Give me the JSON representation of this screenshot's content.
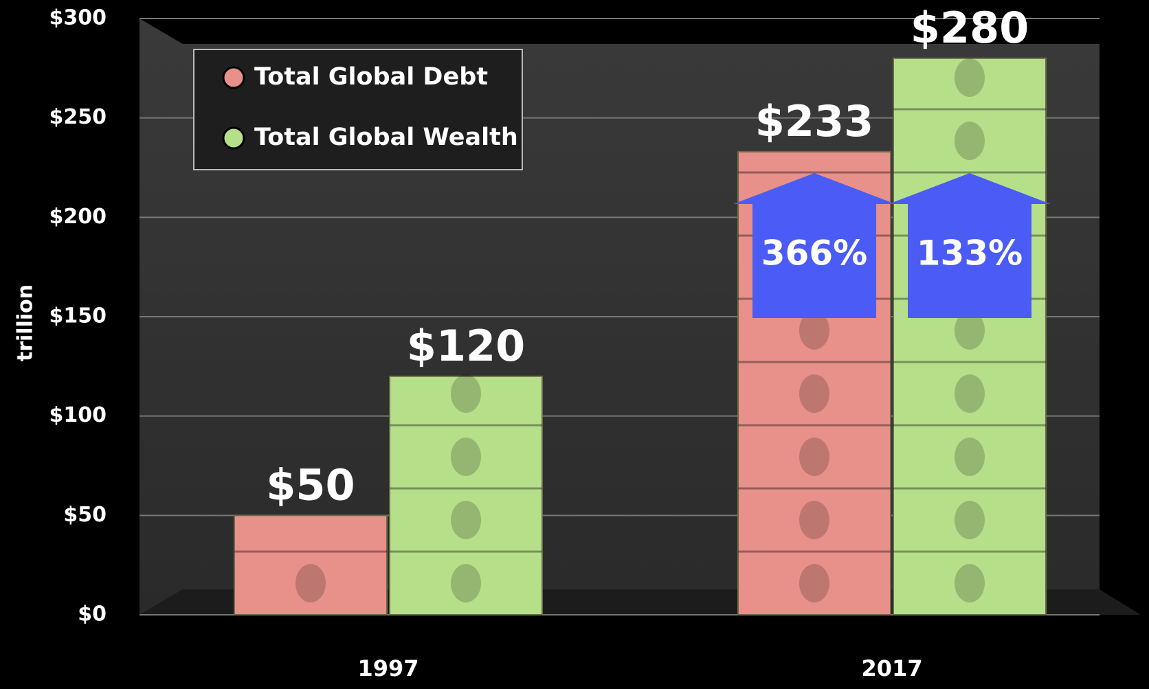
{
  "chart_data": {
    "type": "bar",
    "categories": [
      "1997",
      "2017"
    ],
    "series": [
      {
        "name": "Total Global Debt",
        "color": "#e8908a",
        "values": [
          50,
          233
        ],
        "value_labels": [
          "$50",
          "$233"
        ]
      },
      {
        "name": "Total Global Wealth",
        "color": "#b6df8a",
        "values": [
          120,
          280
        ],
        "value_labels": [
          "$120",
          "$280"
        ]
      }
    ],
    "ylabel": "trillion",
    "ylim": [
      0,
      300
    ],
    "yticks": [
      {
        "value": 0,
        "label": "$0"
      },
      {
        "value": 50,
        "label": "$50"
      },
      {
        "value": 100,
        "label": "$100"
      },
      {
        "value": 150,
        "label": "$150"
      },
      {
        "value": 200,
        "label": "$200"
      },
      {
        "value": 250,
        "label": "$250"
      },
      {
        "value": 300,
        "label": "$300"
      }
    ],
    "grid": true,
    "legend": "upper left",
    "annotations": [
      "366%",
      "133%"
    ]
  }
}
